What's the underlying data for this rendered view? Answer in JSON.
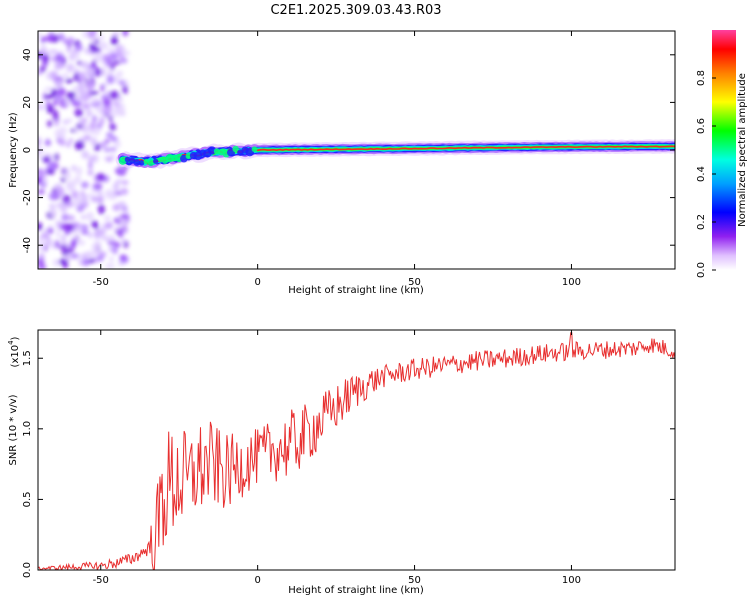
{
  "title": "C2E1.2025.309.03.43.R03",
  "chart_data": [
    {
      "type": "heatmap",
      "panel": "spectrogram",
      "xlabel": "Height of straight line (km)",
      "ylabel": "Frequency (Hz)",
      "xlim": [
        -70,
        133
      ],
      "ylim": [
        -50,
        50
      ],
      "xticks": [
        -50,
        0,
        50,
        100
      ],
      "yticks": [
        -40,
        -20,
        0,
        20,
        40
      ],
      "colorbar": {
        "label": "Normalized spectral amplitude",
        "range": [
          0,
          1
        ],
        "ticks": [
          "0.0",
          "0.2",
          "0.4",
          "0.6",
          "0.8"
        ],
        "colors": [
          "#ffffff",
          "#a020f0",
          "#0000ff",
          "#00ffff",
          "#00ff00",
          "#ffff00",
          "#ff8000",
          "#ff0000",
          "#ff00c0"
        ]
      },
      "noise_region_x": [
        -70,
        -43
      ],
      "ridge": [
        {
          "x": -43,
          "freq": -4
        },
        {
          "x": -35,
          "freq": -5
        },
        {
          "x": -25,
          "freq": -3
        },
        {
          "x": -15,
          "freq": -1
        },
        {
          "x": 0,
          "freq": 0
        },
        {
          "x": 25,
          "freq": 0.3
        },
        {
          "x": 50,
          "freq": 0.6
        },
        {
          "x": 75,
          "freq": 1
        },
        {
          "x": 100,
          "freq": 1.3
        },
        {
          "x": 133,
          "freq": 1.5
        }
      ]
    },
    {
      "type": "line",
      "panel": "snr",
      "xlabel": "Height of straight line (km)",
      "ylabel": "SNR (10 * v/v)",
      "multiplier": "(x10",
      "multiplier_exp": "4",
      "xlim": [
        -70,
        133
      ],
      "ylim": [
        0,
        1.7
      ],
      "xticks": [
        -50,
        0,
        50,
        100
      ],
      "yticks": [
        "0.0",
        "0.5",
        "1.0",
        "1.5"
      ],
      "color": "#e83030",
      "series": [
        {
          "x": -70,
          "y": 0.01
        },
        {
          "x": -60,
          "y": 0.02
        },
        {
          "x": -50,
          "y": 0.03
        },
        {
          "x": -45,
          "y": 0.05
        },
        {
          "x": -40,
          "y": 0.08
        },
        {
          "x": -35,
          "y": 0.15
        },
        {
          "x": -32,
          "y": 0.25
        },
        {
          "x": -30,
          "y": 0.55
        },
        {
          "x": -28,
          "y": 0.6
        },
        {
          "x": -25,
          "y": 0.65
        },
        {
          "x": -22,
          "y": 0.6
        },
        {
          "x": -20,
          "y": 0.7
        },
        {
          "x": -15,
          "y": 0.75
        },
        {
          "x": -10,
          "y": 0.68
        },
        {
          "x": -5,
          "y": 0.75
        },
        {
          "x": 0,
          "y": 0.8
        },
        {
          "x": 5,
          "y": 0.85
        },
        {
          "x": 10,
          "y": 0.88
        },
        {
          "x": 15,
          "y": 0.95
        },
        {
          "x": 20,
          "y": 1.05
        },
        {
          "x": 25,
          "y": 1.15
        },
        {
          "x": 30,
          "y": 1.25
        },
        {
          "x": 35,
          "y": 1.32
        },
        {
          "x": 40,
          "y": 1.37
        },
        {
          "x": 50,
          "y": 1.42
        },
        {
          "x": 60,
          "y": 1.45
        },
        {
          "x": 70,
          "y": 1.48
        },
        {
          "x": 80,
          "y": 1.5
        },
        {
          "x": 90,
          "y": 1.53
        },
        {
          "x": 100,
          "y": 1.55
        },
        {
          "x": 110,
          "y": 1.56
        },
        {
          "x": 120,
          "y": 1.57
        },
        {
          "x": 125,
          "y": 1.6
        },
        {
          "x": 133,
          "y": 1.55
        }
      ],
      "noise_amplitude": [
        {
          "x": -70,
          "amp": 0.01
        },
        {
          "x": -35,
          "amp": 0.05
        },
        {
          "x": -31,
          "amp": 0.45
        },
        {
          "x": -20,
          "amp": 0.35
        },
        {
          "x": 0,
          "amp": 0.2
        },
        {
          "x": 10,
          "amp": 0.25
        },
        {
          "x": 20,
          "amp": 0.2
        },
        {
          "x": 40,
          "amp": 0.08
        },
        {
          "x": 133,
          "amp": 0.06
        }
      ],
      "peak": {
        "x": 100,
        "y": 1.68
      }
    }
  ]
}
